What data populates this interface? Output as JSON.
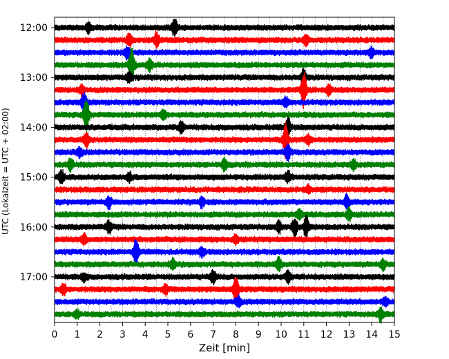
{
  "chart_data": {
    "type": "line",
    "title": "",
    "xlabel": "Zeit  [min]",
    "ylabel": "UTC (Lokalzeit = UTC + 02:00)",
    "xlim": [
      0,
      15
    ],
    "x_ticks": [
      0,
      1,
      2,
      3,
      4,
      5,
      6,
      7,
      8,
      9,
      10,
      11,
      12,
      13,
      14,
      15
    ],
    "x_tick_labels": [
      "0",
      "1",
      "2",
      "3",
      "4",
      "5",
      "6",
      "7",
      "8",
      "9",
      "10",
      "11",
      "12",
      "13",
      "14",
      "15"
    ],
    "y_tick_labels": [
      "12:00",
      "13:00",
      "14:00",
      "15:00",
      "16:00",
      "17:00"
    ],
    "x_grid": "dotted vertical every 0.5 min",
    "trace_interval_min": 15,
    "trace_colors": [
      "#000000",
      "#ff0000",
      "#0000ff",
      "#008000"
    ],
    "series": [
      {
        "start": "12:00",
        "events": [
          {
            "x": 5.3,
            "amp": 2.2
          },
          {
            "x": 1.5,
            "amp": 1.2
          }
        ]
      },
      {
        "start": "12:15",
        "events": [
          {
            "x": 3.3,
            "amp": 1.5
          },
          {
            "x": 4.5,
            "amp": 1.8
          },
          {
            "x": 11.1,
            "amp": 1.2
          }
        ]
      },
      {
        "start": "12:30",
        "events": [
          {
            "x": 3.2,
            "amp": 1.4
          },
          {
            "x": 14.0,
            "amp": 1.2
          }
        ]
      },
      {
        "start": "12:45",
        "events": [
          {
            "x": 3.4,
            "amp": 4.5
          },
          {
            "x": 4.2,
            "amp": 1.6
          }
        ]
      },
      {
        "start": "13:00",
        "events": [
          {
            "x": 11.0,
            "amp": 2.2
          },
          {
            "x": 3.3,
            "amp": 1.2
          }
        ]
      },
      {
        "start": "13:15",
        "events": [
          {
            "x": 11.0,
            "amp": 4.5
          },
          {
            "x": 12.1,
            "amp": 1.2
          },
          {
            "x": 1.2,
            "amp": 1.2
          }
        ]
      },
      {
        "start": "13:30",
        "events": [
          {
            "x": 1.3,
            "amp": 2.8
          },
          {
            "x": 10.2,
            "amp": 1.2
          }
        ]
      },
      {
        "start": "13:45",
        "events": [
          {
            "x": 1.4,
            "amp": 4.5
          },
          {
            "x": 4.8,
            "amp": 1.2
          }
        ]
      },
      {
        "start": "14:00",
        "events": [
          {
            "x": 10.3,
            "amp": 3.0
          },
          {
            "x": 5.6,
            "amp": 1.4
          }
        ]
      },
      {
        "start": "14:15",
        "events": [
          {
            "x": 10.2,
            "amp": 4.5
          },
          {
            "x": 1.4,
            "amp": 1.8
          },
          {
            "x": 11.2,
            "amp": 1.2
          }
        ]
      },
      {
        "start": "14:30",
        "events": [
          {
            "x": 10.3,
            "amp": 2.0
          },
          {
            "x": 1.1,
            "amp": 1.2
          }
        ]
      },
      {
        "start": "14:45",
        "events": [
          {
            "x": 0.7,
            "amp": 1.6
          },
          {
            "x": 7.5,
            "amp": 1.4
          },
          {
            "x": 13.2,
            "amp": 1.2
          }
        ]
      },
      {
        "start": "15:00",
        "events": [
          {
            "x": 0.3,
            "amp": 1.8
          },
          {
            "x": 3.3,
            "amp": 1.0
          },
          {
            "x": 10.3,
            "amp": 1.4
          }
        ]
      },
      {
        "start": "15:15",
        "events": [
          {
            "x": 11.2,
            "amp": 1.0
          }
        ]
      },
      {
        "start": "15:30",
        "events": [
          {
            "x": 12.9,
            "amp": 1.8
          },
          {
            "x": 2.4,
            "amp": 1.4
          },
          {
            "x": 6.5,
            "amp": 1.2
          }
        ]
      },
      {
        "start": "15:45",
        "events": [
          {
            "x": 10.8,
            "amp": 1.2
          },
          {
            "x": 13.0,
            "amp": 1.4
          }
        ]
      },
      {
        "start": "16:00",
        "events": [
          {
            "x": 10.6,
            "amp": 2.5
          },
          {
            "x": 11.1,
            "amp": 2.5
          },
          {
            "x": 2.4,
            "amp": 1.6
          },
          {
            "x": 9.9,
            "amp": 1.4
          }
        ]
      },
      {
        "start": "16:15",
        "events": [
          {
            "x": 8.0,
            "amp": 1.2
          },
          {
            "x": 1.3,
            "amp": 1.2
          }
        ]
      },
      {
        "start": "16:30",
        "events": [
          {
            "x": 3.6,
            "amp": 3.5
          },
          {
            "x": 6.5,
            "amp": 1.2
          }
        ]
      },
      {
        "start": "16:45",
        "events": [
          {
            "x": 9.9,
            "amp": 1.6
          },
          {
            "x": 5.2,
            "amp": 1.2
          },
          {
            "x": 14.5,
            "amp": 1.2
          }
        ]
      },
      {
        "start": "17:00",
        "events": [
          {
            "x": 7.0,
            "amp": 1.8
          },
          {
            "x": 10.3,
            "amp": 1.4
          },
          {
            "x": 1.3,
            "amp": 1.0
          }
        ]
      },
      {
        "start": "17:15",
        "events": [
          {
            "x": 8.0,
            "amp": 3.5
          },
          {
            "x": 0.4,
            "amp": 1.4
          },
          {
            "x": 4.9,
            "amp": 1.2
          }
        ]
      },
      {
        "start": "17:30",
        "events": [
          {
            "x": 8.1,
            "amp": 1.4
          },
          {
            "x": 14.6,
            "amp": 1.2
          }
        ]
      },
      {
        "start": "17:45",
        "events": [
          {
            "x": 14.4,
            "amp": 1.6
          },
          {
            "x": 1.0,
            "amp": 1.0
          }
        ]
      }
    ]
  }
}
